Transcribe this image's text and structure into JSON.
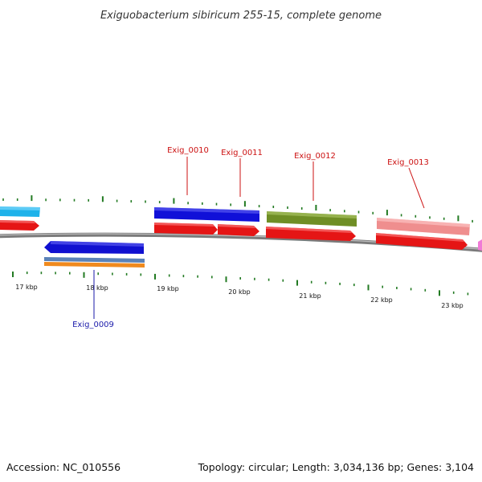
{
  "title": "Exiguobacterium sibiricum 255-15, complete genome",
  "footer": {
    "accession": "Accession: NC_010556",
    "summary": "Topology: circular; Length: 3,034,136 bp; Genes: 3,104"
  },
  "ticks": [
    {
      "label": "17 kbp"
    },
    {
      "label": "18 kbp"
    },
    {
      "label": "19 kbp"
    },
    {
      "label": "20 kbp"
    },
    {
      "label": "21 kbp"
    },
    {
      "label": "22 kbp"
    },
    {
      "label": "23 kbp"
    }
  ],
  "genes": [
    {
      "id": "exig-0009",
      "label": "Exig_0009",
      "color": "#0a0ac0"
    },
    {
      "id": "exig-0010",
      "label": "Exig_0010",
      "color": "#cc1111"
    },
    {
      "id": "exig-0011",
      "label": "Exig_0011",
      "color": "#cc1111"
    },
    {
      "id": "exig-0012",
      "label": "Exig_0012",
      "color": "#cc1111"
    },
    {
      "id": "exig-0013",
      "label": "Exig_0013",
      "color": "#cc1111"
    }
  ],
  "colors": {
    "backbone": "#888888",
    "tick": "#227a22",
    "forward_cds": "#ee1111",
    "blue_feature": "#1111dd",
    "cyan_feature": "#22b8ee",
    "olive_feature": "#6f8e25",
    "pink_feature": "#ef8e8e",
    "orange_feature": "#ee8822",
    "steel_feature": "#5a82b8"
  }
}
